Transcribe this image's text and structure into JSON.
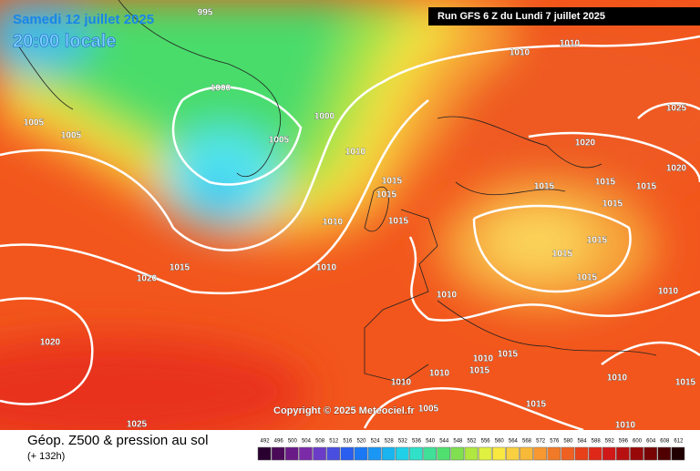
{
  "header": {
    "date": "Samedi 12 juillet 2025",
    "time": "20:00 locale",
    "run": "Run GFS 6 Z du Lundi 7 juillet 2025",
    "copyright": "Copyright © 2025 Meteociel.fr"
  },
  "footer": {
    "title": "Géop. Z500 & pression au sol",
    "lead": "(+ 132h)"
  },
  "isobars": [
    "995",
    "1010",
    "1010",
    "1000",
    "1025",
    "1005",
    "1000",
    "1005",
    "1005",
    "1020",
    "1010",
    "1020",
    "1015",
    "1015",
    "1015",
    "1015",
    "1015",
    "1015",
    "1010",
    "1015",
    "1015",
    "1015",
    "1015",
    "1010",
    "1015",
    "1020",
    "1010",
    "1010",
    "1020",
    "1015",
    "1010",
    "1015",
    "1015",
    "1010",
    "1010",
    "1010",
    "1015",
    "1005",
    "1025",
    "1010"
  ],
  "colorbar": {
    "ticks": [
      492,
      496,
      500,
      504,
      508,
      512,
      516,
      520,
      524,
      528,
      532,
      536,
      540,
      544,
      548,
      552,
      556,
      560,
      564,
      568,
      572,
      576,
      580,
      584,
      588,
      592,
      596,
      600,
      604,
      608,
      612
    ]
  }
}
